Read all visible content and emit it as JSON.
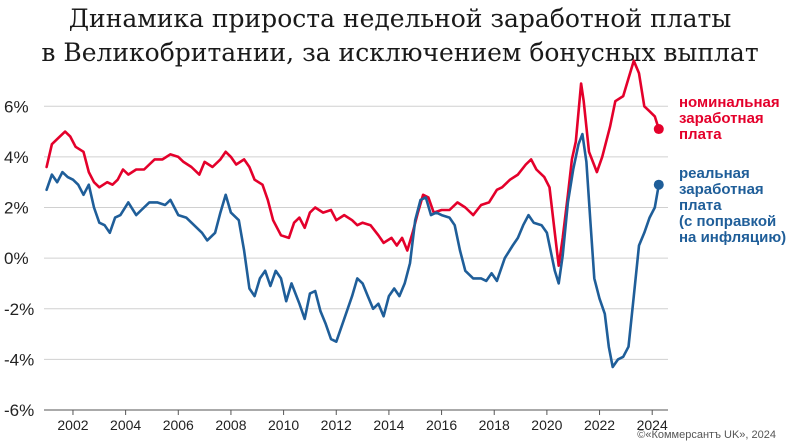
{
  "chart_data": {
    "type": "line",
    "title_lines": [
      "Динамика прироста недельной заработной платы",
      "в Великобритании, за исключением бонусных выплат"
    ],
    "xlabel": "",
    "ylabel": "",
    "x_ticks": [
      "2002",
      "2004",
      "2006",
      "2008",
      "2010",
      "2012",
      "2014",
      "2016",
      "2018",
      "2020",
      "2022",
      "2024"
    ],
    "y_ticks": [
      "6%",
      "4%",
      "2%",
      "0%",
      "-2%",
      "-4%",
      "-6%"
    ],
    "xlim": [
      2000.9,
      2024.6
    ],
    "ylim": [
      -6,
      6.8
    ],
    "grid": true,
    "series": [
      {
        "name": "номинальная заработная плата",
        "color": "#e4002b",
        "points": [
          [
            2001.0,
            3.6
          ],
          [
            2001.2,
            4.5
          ],
          [
            2001.5,
            4.8
          ],
          [
            2001.7,
            5.0
          ],
          [
            2001.9,
            4.8
          ],
          [
            2002.1,
            4.4
          ],
          [
            2002.4,
            4.2
          ],
          [
            2002.6,
            3.4
          ],
          [
            2002.8,
            3.0
          ],
          [
            2003.0,
            2.8
          ],
          [
            2003.3,
            3.0
          ],
          [
            2003.5,
            2.9
          ],
          [
            2003.7,
            3.1
          ],
          [
            2003.9,
            3.5
          ],
          [
            2004.1,
            3.3
          ],
          [
            2004.4,
            3.5
          ],
          [
            2004.7,
            3.5
          ],
          [
            2004.9,
            3.7
          ],
          [
            2005.1,
            3.9
          ],
          [
            2005.4,
            3.9
          ],
          [
            2005.7,
            4.1
          ],
          [
            2006.0,
            4.0
          ],
          [
            2006.2,
            3.8
          ],
          [
            2006.5,
            3.6
          ],
          [
            2006.8,
            3.3
          ],
          [
            2007.0,
            3.8
          ],
          [
            2007.3,
            3.6
          ],
          [
            2007.6,
            3.9
          ],
          [
            2007.8,
            4.2
          ],
          [
            2008.0,
            4.0
          ],
          [
            2008.2,
            3.7
          ],
          [
            2008.5,
            3.9
          ],
          [
            2008.7,
            3.6
          ],
          [
            2008.9,
            3.1
          ],
          [
            2009.2,
            2.9
          ],
          [
            2009.4,
            2.3
          ],
          [
            2009.6,
            1.5
          ],
          [
            2009.9,
            0.9
          ],
          [
            2010.2,
            0.8
          ],
          [
            2010.4,
            1.4
          ],
          [
            2010.6,
            1.6
          ],
          [
            2010.8,
            1.2
          ],
          [
            2011.0,
            1.8
          ],
          [
            2011.2,
            2.0
          ],
          [
            2011.5,
            1.8
          ],
          [
            2011.8,
            1.9
          ],
          [
            2012.0,
            1.5
          ],
          [
            2012.3,
            1.7
          ],
          [
            2012.6,
            1.5
          ],
          [
            2012.8,
            1.3
          ],
          [
            2013.0,
            1.4
          ],
          [
            2013.3,
            1.3
          ],
          [
            2013.6,
            0.9
          ],
          [
            2013.8,
            0.6
          ],
          [
            2014.1,
            0.8
          ],
          [
            2014.3,
            0.5
          ],
          [
            2014.5,
            0.8
          ],
          [
            2014.7,
            0.3
          ],
          [
            2014.9,
            1.0
          ],
          [
            2015.1,
            1.8
          ],
          [
            2015.3,
            2.5
          ],
          [
            2015.5,
            2.4
          ],
          [
            2015.7,
            1.8
          ],
          [
            2016.0,
            1.9
          ],
          [
            2016.3,
            1.9
          ],
          [
            2016.6,
            2.2
          ],
          [
            2016.9,
            2.0
          ],
          [
            2017.2,
            1.7
          ],
          [
            2017.5,
            2.1
          ],
          [
            2017.8,
            2.2
          ],
          [
            2018.1,
            2.7
          ],
          [
            2018.3,
            2.8
          ],
          [
            2018.6,
            3.1
          ],
          [
            2018.9,
            3.3
          ],
          [
            2019.2,
            3.7
          ],
          [
            2019.4,
            3.9
          ],
          [
            2019.6,
            3.5
          ],
          [
            2019.9,
            3.2
          ],
          [
            2020.1,
            2.8
          ],
          [
            2020.3,
            1.0
          ],
          [
            2020.45,
            -0.3
          ],
          [
            2020.6,
            0.8
          ],
          [
            2020.8,
            2.5
          ],
          [
            2020.95,
            3.9
          ],
          [
            2021.1,
            4.6
          ],
          [
            2021.3,
            6.9
          ],
          [
            2021.4,
            6.2
          ],
          [
            2021.6,
            4.2
          ],
          [
            2021.9,
            3.4
          ],
          [
            2022.1,
            4.0
          ],
          [
            2022.4,
            5.2
          ],
          [
            2022.6,
            6.2
          ],
          [
            2022.9,
            6.4
          ],
          [
            2023.1,
            7.1
          ],
          [
            2023.3,
            7.8
          ],
          [
            2023.5,
            7.3
          ],
          [
            2023.7,
            6.0
          ],
          [
            2023.9,
            5.8
          ],
          [
            2024.1,
            5.6
          ],
          [
            2024.25,
            5.1
          ]
        ]
      },
      {
        "name": "реальная заработная плата (с поправкой на инфляцию)",
        "color": "#1f5e99",
        "points": [
          [
            2001.0,
            2.7
          ],
          [
            2001.2,
            3.3
          ],
          [
            2001.4,
            3.0
          ],
          [
            2001.6,
            3.4
          ],
          [
            2001.8,
            3.2
          ],
          [
            2002.0,
            3.1
          ],
          [
            2002.2,
            2.9
          ],
          [
            2002.4,
            2.5
          ],
          [
            2002.6,
            2.9
          ],
          [
            2002.8,
            2.0
          ],
          [
            2003.0,
            1.4
          ],
          [
            2003.2,
            1.3
          ],
          [
            2003.4,
            1.0
          ],
          [
            2003.6,
            1.6
          ],
          [
            2003.8,
            1.7
          ],
          [
            2004.1,
            2.2
          ],
          [
            2004.4,
            1.7
          ],
          [
            2004.6,
            1.9
          ],
          [
            2004.9,
            2.2
          ],
          [
            2005.2,
            2.2
          ],
          [
            2005.5,
            2.1
          ],
          [
            2005.7,
            2.3
          ],
          [
            2006.0,
            1.7
          ],
          [
            2006.3,
            1.6
          ],
          [
            2006.6,
            1.3
          ],
          [
            2006.9,
            1.0
          ],
          [
            2007.1,
            0.7
          ],
          [
            2007.4,
            1.0
          ],
          [
            2007.6,
            1.8
          ],
          [
            2007.8,
            2.5
          ],
          [
            2008.0,
            1.8
          ],
          [
            2008.3,
            1.5
          ],
          [
            2008.5,
            0.3
          ],
          [
            2008.7,
            -1.2
          ],
          [
            2008.9,
            -1.5
          ],
          [
            2009.1,
            -0.8
          ],
          [
            2009.3,
            -0.5
          ],
          [
            2009.5,
            -1.1
          ],
          [
            2009.7,
            -0.5
          ],
          [
            2009.9,
            -0.8
          ],
          [
            2010.1,
            -1.7
          ],
          [
            2010.3,
            -1.0
          ],
          [
            2010.6,
            -1.8
          ],
          [
            2010.8,
            -2.4
          ],
          [
            2011.0,
            -1.4
          ],
          [
            2011.2,
            -1.3
          ],
          [
            2011.4,
            -2.1
          ],
          [
            2011.6,
            -2.6
          ],
          [
            2011.8,
            -3.2
          ],
          [
            2012.0,
            -3.3
          ],
          [
            2012.3,
            -2.4
          ],
          [
            2012.6,
            -1.5
          ],
          [
            2012.8,
            -0.8
          ],
          [
            2013.0,
            -1.0
          ],
          [
            2013.2,
            -1.5
          ],
          [
            2013.4,
            -2.0
          ],
          [
            2013.6,
            -1.8
          ],
          [
            2013.8,
            -2.3
          ],
          [
            2014.0,
            -1.5
          ],
          [
            2014.2,
            -1.2
          ],
          [
            2014.4,
            -1.5
          ],
          [
            2014.6,
            -1.0
          ],
          [
            2014.8,
            -0.2
          ],
          [
            2015.0,
            1.5
          ],
          [
            2015.2,
            2.3
          ],
          [
            2015.4,
            2.4
          ],
          [
            2015.6,
            1.7
          ],
          [
            2015.8,
            1.8
          ],
          [
            2016.0,
            1.7
          ],
          [
            2016.3,
            1.6
          ],
          [
            2016.5,
            1.3
          ],
          [
            2016.7,
            0.3
          ],
          [
            2016.9,
            -0.5
          ],
          [
            2017.2,
            -0.8
          ],
          [
            2017.5,
            -0.8
          ],
          [
            2017.7,
            -0.9
          ],
          [
            2017.9,
            -0.6
          ],
          [
            2018.1,
            -0.9
          ],
          [
            2018.4,
            0.0
          ],
          [
            2018.7,
            0.5
          ],
          [
            2018.9,
            0.8
          ],
          [
            2019.1,
            1.3
          ],
          [
            2019.3,
            1.7
          ],
          [
            2019.5,
            1.4
          ],
          [
            2019.8,
            1.3
          ],
          [
            2020.0,
            1.0
          ],
          [
            2020.3,
            -0.5
          ],
          [
            2020.45,
            -1.0
          ],
          [
            2020.6,
            0.1
          ],
          [
            2020.8,
            2.2
          ],
          [
            2021.0,
            3.5
          ],
          [
            2021.2,
            4.5
          ],
          [
            2021.35,
            4.9
          ],
          [
            2021.5,
            3.8
          ],
          [
            2021.65,
            1.5
          ],
          [
            2021.8,
            -0.8
          ],
          [
            2022.0,
            -1.6
          ],
          [
            2022.2,
            -2.2
          ],
          [
            2022.35,
            -3.5
          ],
          [
            2022.5,
            -4.3
          ],
          [
            2022.7,
            -4.0
          ],
          [
            2022.9,
            -3.9
          ],
          [
            2023.1,
            -3.5
          ],
          [
            2023.3,
            -1.5
          ],
          [
            2023.5,
            0.5
          ],
          [
            2023.7,
            1.0
          ],
          [
            2023.9,
            1.6
          ],
          [
            2024.1,
            2.0
          ],
          [
            2024.25,
            2.9
          ]
        ]
      }
    ]
  },
  "legend": {
    "nominal": "номинальная\nзаработная\nплата",
    "real": "реальная\nзаработная\nплата\n(с поправкой\nна инфляцию)"
  },
  "credit": "©«Коммерсантъ UK», 2024"
}
